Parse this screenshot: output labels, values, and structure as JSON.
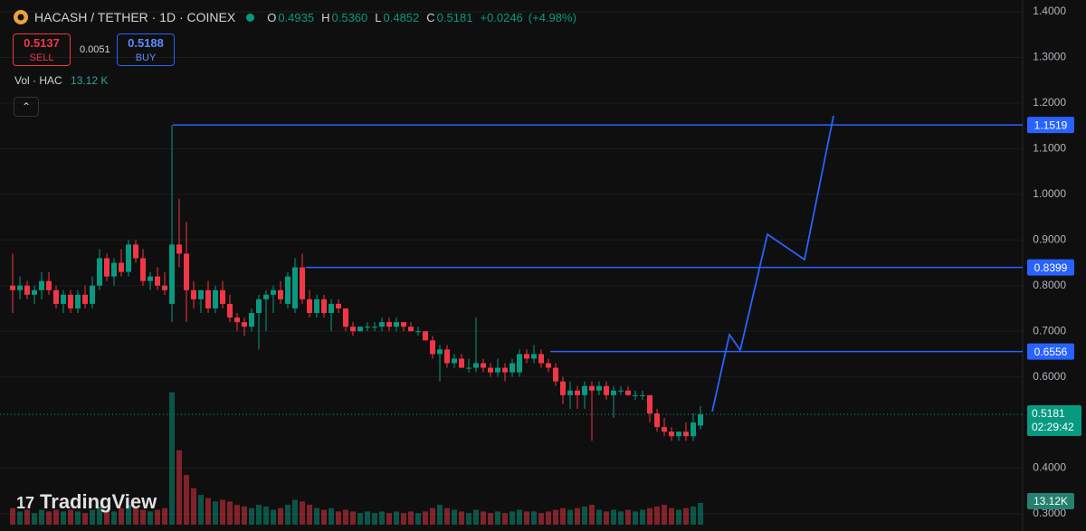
{
  "chart_data": {
    "type": "candlestick",
    "symbol": "HACASH / TETHER · 1D · COINEX",
    "ohlc_keys": [
      "O",
      "H",
      "L",
      "C"
    ],
    "ohlc_labels": [
      "0.4935",
      "0.5360",
      "0.4852",
      "0.5181"
    ],
    "change": {
      "value": 0.0246,
      "label": "+0.0246"
    },
    "change_pct": {
      "value": 4.98,
      "label": "(+4.98%)"
    },
    "sell": {
      "price": 0.5137,
      "label": "SELL"
    },
    "spread": 0.0051,
    "buy": {
      "price": 0.5188,
      "label": "BUY"
    },
    "volume_title": "Vol · HAC",
    "volume_label": "13.12 K",
    "volume_axis_label": "13.12K",
    "countdown": "02:29:42",
    "watermark": "TradingView",
    "colors": {
      "up": "#089981",
      "down": "#f23645",
      "level": "#2962ff"
    },
    "ylim": [
      0.3,
      1.4
    ],
    "yticks": [
      {
        "value": 1.4,
        "label": "1.4000"
      },
      {
        "value": 1.3,
        "label": "1.3000"
      },
      {
        "value": 1.2,
        "label": "1.2000"
      },
      {
        "value": 1.1,
        "label": "1.1000"
      },
      {
        "value": 1.0,
        "label": "1.0000"
      },
      {
        "value": 0.9,
        "label": "0.9000"
      },
      {
        "value": 0.8,
        "label": "0.8000"
      },
      {
        "value": 0.7,
        "label": "0.7000"
      },
      {
        "value": 0.6,
        "label": "0.6000"
      },
      {
        "value": 0.4,
        "label": "0.4000"
      },
      {
        "value": 0.3,
        "label": "0.3000"
      }
    ],
    "levels": [
      1.1519,
      0.8399,
      0.6556
    ],
    "grid": true,
    "candles": [
      [
        0.8,
        0.87,
        0.74,
        0.79,
        10
      ],
      [
        0.79,
        0.82,
        0.77,
        0.8,
        8
      ],
      [
        0.8,
        0.81,
        0.77,
        0.78,
        9
      ],
      [
        0.78,
        0.8,
        0.76,
        0.79,
        7
      ],
      [
        0.79,
        0.83,
        0.77,
        0.81,
        9
      ],
      [
        0.81,
        0.83,
        0.78,
        0.79,
        8
      ],
      [
        0.79,
        0.8,
        0.75,
        0.76,
        9
      ],
      [
        0.76,
        0.79,
        0.74,
        0.78,
        8
      ],
      [
        0.78,
        0.79,
        0.74,
        0.75,
        9
      ],
      [
        0.75,
        0.79,
        0.74,
        0.78,
        8
      ],
      [
        0.78,
        0.8,
        0.75,
        0.76,
        7
      ],
      [
        0.76,
        0.82,
        0.75,
        0.8,
        9
      ],
      [
        0.8,
        0.88,
        0.79,
        0.86,
        11
      ],
      [
        0.86,
        0.87,
        0.81,
        0.82,
        9
      ],
      [
        0.82,
        0.86,
        0.8,
        0.85,
        8
      ],
      [
        0.85,
        0.88,
        0.82,
        0.83,
        10
      ],
      [
        0.83,
        0.9,
        0.82,
        0.89,
        12
      ],
      [
        0.89,
        0.9,
        0.85,
        0.86,
        10
      ],
      [
        0.86,
        0.88,
        0.8,
        0.81,
        9
      ],
      [
        0.81,
        0.83,
        0.79,
        0.82,
        8
      ],
      [
        0.82,
        0.84,
        0.79,
        0.8,
        9
      ],
      [
        0.8,
        0.83,
        0.78,
        0.79,
        10
      ],
      [
        0.76,
        1.1519,
        0.72,
        0.89,
        80
      ],
      [
        0.89,
        0.99,
        0.84,
        0.87,
        45
      ],
      [
        0.87,
        0.94,
        0.72,
        0.79,
        30
      ],
      [
        0.79,
        0.81,
        0.75,
        0.77,
        22
      ],
      [
        0.77,
        0.79,
        0.74,
        0.79,
        18
      ],
      [
        0.79,
        0.81,
        0.74,
        0.75,
        16
      ],
      [
        0.75,
        0.8,
        0.74,
        0.79,
        14
      ],
      [
        0.79,
        0.81,
        0.75,
        0.76,
        15
      ],
      [
        0.76,
        0.78,
        0.72,
        0.73,
        14
      ],
      [
        0.73,
        0.74,
        0.7,
        0.72,
        12
      ],
      [
        0.72,
        0.73,
        0.69,
        0.71,
        11
      ],
      [
        0.71,
        0.75,
        0.7,
        0.74,
        10
      ],
      [
        0.74,
        0.78,
        0.66,
        0.77,
        12
      ],
      [
        0.77,
        0.79,
        0.7,
        0.78,
        11
      ],
      [
        0.78,
        0.8,
        0.74,
        0.79,
        9
      ],
      [
        0.79,
        0.81,
        0.76,
        0.77,
        10
      ],
      [
        0.76,
        0.83,
        0.75,
        0.82,
        12
      ],
      [
        0.75,
        0.86,
        0.74,
        0.84,
        15
      ],
      [
        0.84,
        0.87,
        0.76,
        0.77,
        14
      ],
      [
        0.77,
        0.79,
        0.73,
        0.74,
        12
      ],
      [
        0.74,
        0.78,
        0.73,
        0.77,
        10
      ],
      [
        0.77,
        0.78,
        0.73,
        0.74,
        9
      ],
      [
        0.74,
        0.77,
        0.7,
        0.76,
        10
      ],
      [
        0.76,
        0.77,
        0.74,
        0.75,
        8
      ],
      [
        0.75,
        0.75,
        0.7,
        0.71,
        9
      ],
      [
        0.71,
        0.72,
        0.69,
        0.7,
        8
      ],
      [
        0.7,
        0.71,
        0.7,
        0.71,
        7
      ],
      [
        0.71,
        0.72,
        0.7,
        0.71,
        8
      ],
      [
        0.71,
        0.72,
        0.7,
        0.71,
        7
      ],
      [
        0.71,
        0.73,
        0.7,
        0.72,
        8
      ],
      [
        0.72,
        0.73,
        0.7,
        0.71,
        7
      ],
      [
        0.71,
        0.73,
        0.7,
        0.72,
        8
      ],
      [
        0.72,
        0.72,
        0.7,
        0.71,
        7
      ],
      [
        0.71,
        0.72,
        0.7,
        0.7,
        8
      ],
      [
        0.7,
        0.71,
        0.69,
        0.7,
        7
      ],
      [
        0.7,
        0.7,
        0.68,
        0.68,
        8
      ],
      [
        0.68,
        0.69,
        0.64,
        0.65,
        10
      ],
      [
        0.65,
        0.67,
        0.59,
        0.66,
        12
      ],
      [
        0.66,
        0.67,
        0.62,
        0.63,
        10
      ],
      [
        0.63,
        0.65,
        0.62,
        0.64,
        9
      ],
      [
        0.64,
        0.65,
        0.62,
        0.62,
        8
      ],
      [
        0.62,
        0.64,
        0.61,
        0.62,
        7
      ],
      [
        0.62,
        0.73,
        0.61,
        0.63,
        9
      ],
      [
        0.63,
        0.64,
        0.61,
        0.62,
        8
      ],
      [
        0.62,
        0.63,
        0.6,
        0.61,
        7
      ],
      [
        0.61,
        0.64,
        0.6,
        0.62,
        8
      ],
      [
        0.62,
        0.63,
        0.59,
        0.61,
        7
      ],
      [
        0.61,
        0.64,
        0.6,
        0.63,
        8
      ],
      [
        0.61,
        0.66,
        0.6,
        0.65,
        9
      ],
      [
        0.65,
        0.66,
        0.63,
        0.64,
        8
      ],
      [
        0.64,
        0.67,
        0.63,
        0.65,
        8
      ],
      [
        0.65,
        0.66,
        0.62,
        0.63,
        7
      ],
      [
        0.63,
        0.64,
        0.61,
        0.62,
        8
      ],
      [
        0.62,
        0.63,
        0.58,
        0.59,
        9
      ],
      [
        0.59,
        0.6,
        0.54,
        0.56,
        10
      ],
      [
        0.56,
        0.59,
        0.53,
        0.57,
        9
      ],
      [
        0.57,
        0.58,
        0.53,
        0.56,
        10
      ],
      [
        0.56,
        0.59,
        0.53,
        0.58,
        11
      ],
      [
        0.58,
        0.59,
        0.46,
        0.57,
        12
      ],
      [
        0.57,
        0.59,
        0.56,
        0.58,
        9
      ],
      [
        0.58,
        0.59,
        0.55,
        0.56,
        8
      ],
      [
        0.56,
        0.58,
        0.51,
        0.57,
        9
      ],
      [
        0.57,
        0.58,
        0.56,
        0.57,
        8
      ],
      [
        0.57,
        0.58,
        0.56,
        0.56,
        9
      ],
      [
        0.56,
        0.57,
        0.55,
        0.56,
        8
      ],
      [
        0.56,
        0.57,
        0.55,
        0.56,
        9
      ],
      [
        0.56,
        0.56,
        0.5,
        0.52,
        10
      ],
      [
        0.52,
        0.53,
        0.48,
        0.49,
        11
      ],
      [
        0.49,
        0.51,
        0.47,
        0.48,
        12
      ],
      [
        0.48,
        0.49,
        0.46,
        0.47,
        10
      ],
      [
        0.47,
        0.48,
        0.46,
        0.48,
        9
      ],
      [
        0.48,
        0.5,
        0.46,
        0.47,
        10
      ],
      [
        0.47,
        0.52,
        0.46,
        0.5,
        11
      ],
      [
        0.4935,
        0.536,
        0.4852,
        0.5181,
        13.12
      ]
    ]
  }
}
